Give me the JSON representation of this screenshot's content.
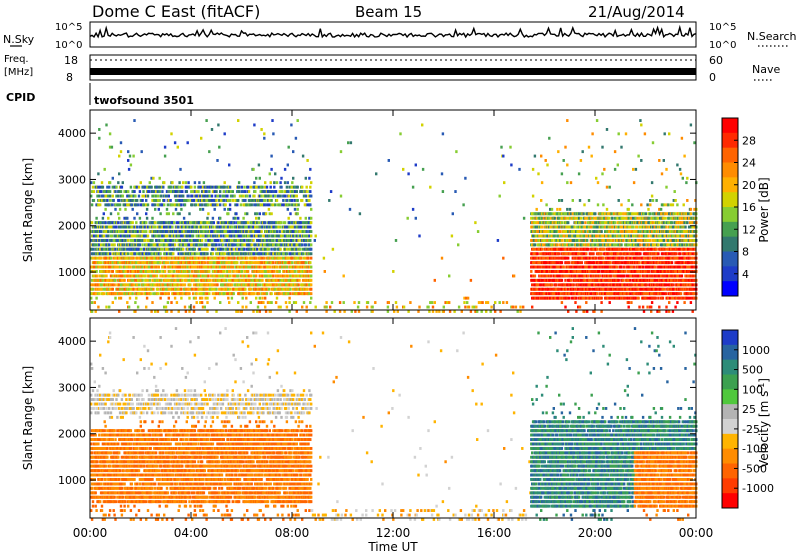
{
  "header": {
    "station": "Dome C East (fitACF)",
    "beam": "Beam 15",
    "date": "21/Aug/2014"
  },
  "panels": {
    "nsky": {
      "label": "N.Sky",
      "ticks": [
        "10^5",
        "10^0"
      ],
      "right_ticks": [
        "10^5",
        "10^0"
      ],
      "right_label": "N.Search"
    },
    "freq": {
      "label_line1": "Freq.",
      "label_line2": "[MHz]",
      "ticks": [
        "18",
        "8"
      ],
      "right_ticks": [
        "60",
        "0"
      ],
      "right_label": "Nave"
    },
    "cpid": {
      "label": "CPID",
      "value": "twofsound 3501"
    }
  },
  "axes": {
    "range_label": "Slant Range [km]",
    "range_ticks": [
      "4000",
      "3000",
      "2000",
      "1000"
    ],
    "x_label": "Time UT",
    "x_ticks": [
      "00:00",
      "04:00",
      "08:00",
      "12:00",
      "16:00",
      "20:00",
      "00:00"
    ]
  },
  "colorbars": {
    "power": {
      "label": "Power [dB]",
      "ticks": [
        "28",
        "24",
        "20",
        "16",
        "12",
        "8",
        "4"
      ],
      "colors": [
        "#ff0000",
        "#ff2a00",
        "#ff6400",
        "#ff8c00",
        "#ffb000",
        "#d2d200",
        "#87cd32",
        "#46a050",
        "#32786e",
        "#285ab4",
        "#1e3cc8",
        "#0000ff"
      ]
    },
    "velocity": {
      "label": "Velocity [m s",
      "label_sup": "-1",
      "label_end": "]",
      "ticks": [
        "1000",
        "500",
        "100",
        "25",
        "-25",
        "-100",
        "-500",
        "-1000"
      ],
      "colors": [
        "#1e3cc8",
        "#2864a0",
        "#2d8c78",
        "#3ca050",
        "#50c83c",
        "#b4b4b4",
        "#d2d2d2",
        "#ffb400",
        "#ff8c00",
        "#ff6400",
        "#ff3c00",
        "#ff0000"
      ]
    }
  },
  "chart_data": {
    "type": "heatmap",
    "x_range": [
      "00:00",
      "24:00"
    ],
    "y_range": [
      180,
      4500
    ],
    "y_unit": "km",
    "panels": [
      {
        "name": "Power",
        "unit": "dB",
        "scale": [
          0,
          30
        ],
        "regions": [
          {
            "t_start": "00:00",
            "t_end": "08:45",
            "range_km": [
              500,
              2900
            ],
            "value_peak": 22
          },
          {
            "t_start": "17:30",
            "t_end": "24:00",
            "range_km": [
              500,
              2400
            ],
            "value_peak": 28
          }
        ]
      },
      {
        "name": "Velocity",
        "unit": "m/s",
        "scale": [
          -1000,
          1000
        ],
        "regions": [
          {
            "t_start": "00:00",
            "t_end": "08:45",
            "range_km": [
              500,
              2900
            ],
            "value_typical": -150
          },
          {
            "t_start": "17:30",
            "t_end": "24:00",
            "range_km": [
              500,
              2400
            ],
            "value_typical": 150
          }
        ]
      }
    ]
  }
}
